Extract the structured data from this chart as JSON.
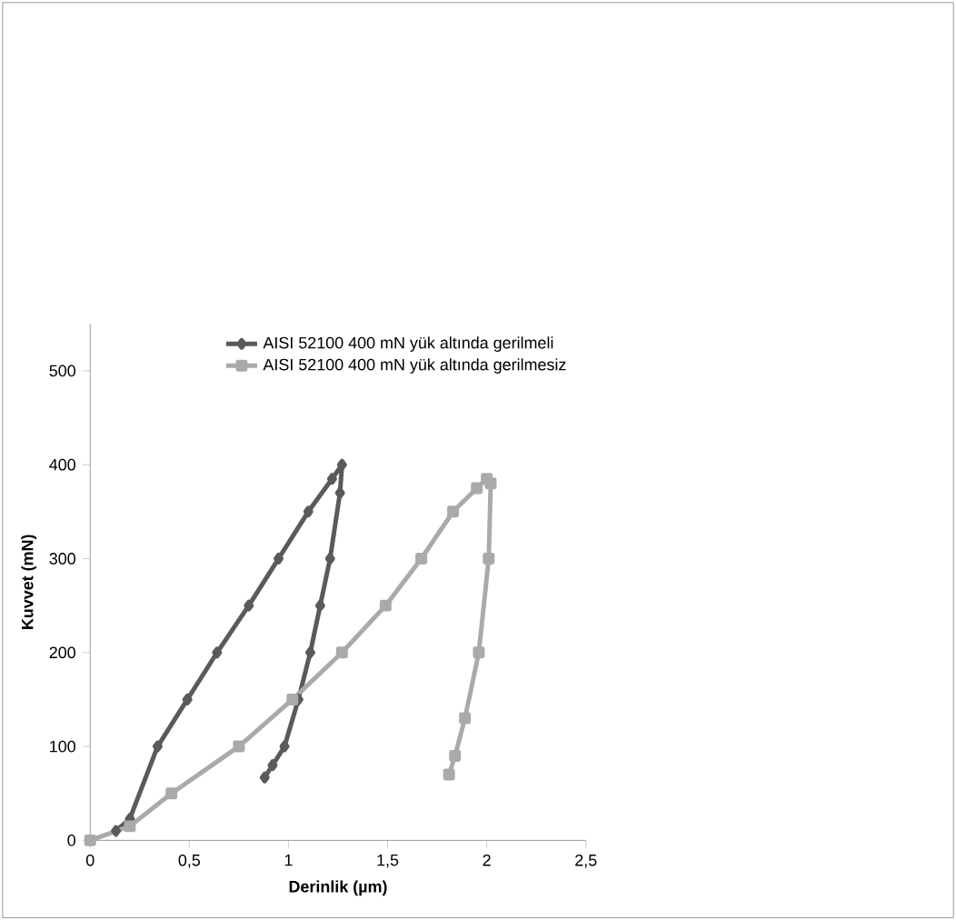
{
  "chart_data": {
    "type": "line",
    "xlabel": "Derinlik (µm)",
    "ylabel": "Kuvvet (mN)",
    "xlim": [
      0,
      2.5
    ],
    "ylim": [
      0,
      550
    ],
    "xticks": [
      0,
      {
        "value": 0.5,
        "label": "0,5"
      },
      1,
      {
        "value": 1.5,
        "label": "1,5"
      },
      2,
      {
        "value": 2.5,
        "label": "2,5"
      }
    ],
    "yticks": [
      0,
      100,
      200,
      300,
      400,
      500
    ],
    "grid": false,
    "legend": "top right",
    "series": [
      {
        "name": "AISI 52100 400 mN yük altında gerilmeli",
        "color": "#5a5a5a",
        "marker": "diamond",
        "x": [
          0.13,
          0.2,
          0.34,
          0.49,
          0.64,
          0.8,
          0.95,
          1.1,
          1.22,
          1.27,
          1.26,
          1.21,
          1.16,
          1.11,
          1.05,
          0.98,
          0.92,
          0.88
        ],
        "values": [
          10,
          23,
          100,
          150,
          200,
          250,
          300,
          350,
          385,
          400,
          370,
          300,
          250,
          200,
          150,
          100,
          80,
          67
        ]
      },
      {
        "name": "AISI 52100 400 mN yük altında gerilmesiz",
        "color": "#aaaaaa",
        "marker": "square",
        "x": [
          0,
          0.2,
          0.41,
          0.75,
          1.02,
          1.27,
          1.49,
          1.67,
          1.83,
          1.95,
          2.0,
          2.02,
          2.01,
          1.96,
          1.89,
          1.84,
          1.81
        ],
        "values": [
          0,
          15,
          50,
          100,
          150,
          200,
          250,
          300,
          350,
          375,
          385,
          380,
          300,
          200,
          130,
          90,
          70
        ]
      }
    ]
  }
}
